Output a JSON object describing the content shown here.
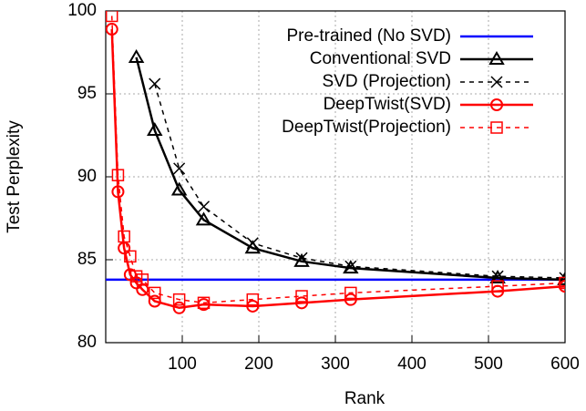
{
  "chart_data": {
    "type": "line",
    "xlabel": "Rank",
    "ylabel": "Test Perplexity",
    "xlim": [
      0,
      600
    ],
    "xticks": [
      100,
      200,
      300,
      400,
      500,
      600
    ],
    "ylim": [
      80,
      100
    ],
    "yticks": [
      80,
      85,
      90,
      95,
      100
    ],
    "grid": true,
    "legend": "top-right",
    "series": [
      {
        "name": "Pre-trained (No SVD)",
        "color": "#0000ff",
        "dash": false,
        "x": [
          0,
          600
        ],
        "values": [
          83.8,
          83.8
        ]
      },
      {
        "name": "Conventional SVD",
        "color": "#000000",
        "dash": false,
        "marker": "triangle",
        "x": [
          40,
          64,
          96,
          128,
          192,
          256,
          320,
          512,
          600
        ],
        "values": [
          97.2,
          92.8,
          89.2,
          87.4,
          85.7,
          84.9,
          84.5,
          83.9,
          83.8
        ]
      },
      {
        "name": "SVD (Projection)",
        "color": "#000000",
        "dash": true,
        "marker": "x",
        "x": [
          64,
          96,
          128,
          192,
          256,
          320,
          512,
          600
        ],
        "values": [
          95.6,
          90.5,
          88.2,
          86.0,
          85.1,
          84.6,
          84.0,
          83.9
        ]
      },
      {
        "name": "DeepTwist(SVD)",
        "color": "#ff0000",
        "dash": false,
        "marker": "circle",
        "x": [
          8,
          16,
          24,
          32,
          40,
          48,
          64,
          96,
          128,
          192,
          256,
          320,
          512,
          600
        ],
        "values": [
          98.9,
          89.1,
          85.7,
          84.1,
          83.6,
          83.2,
          82.5,
          82.1,
          82.3,
          82.2,
          82.4,
          82.6,
          83.1,
          83.4
        ]
      },
      {
        "name": "DeepTwist(Projection)",
        "color": "#ff0000",
        "dash": true,
        "marker": "square",
        "x": [
          8,
          16,
          24,
          32,
          40,
          48,
          64,
          96,
          128,
          192,
          256,
          320,
          512,
          600
        ],
        "values": [
          99.7,
          90.1,
          86.4,
          85.2,
          84.0,
          83.8,
          83.0,
          82.6,
          82.4,
          82.6,
          82.8,
          83.0,
          83.4,
          83.6
        ]
      }
    ]
  }
}
